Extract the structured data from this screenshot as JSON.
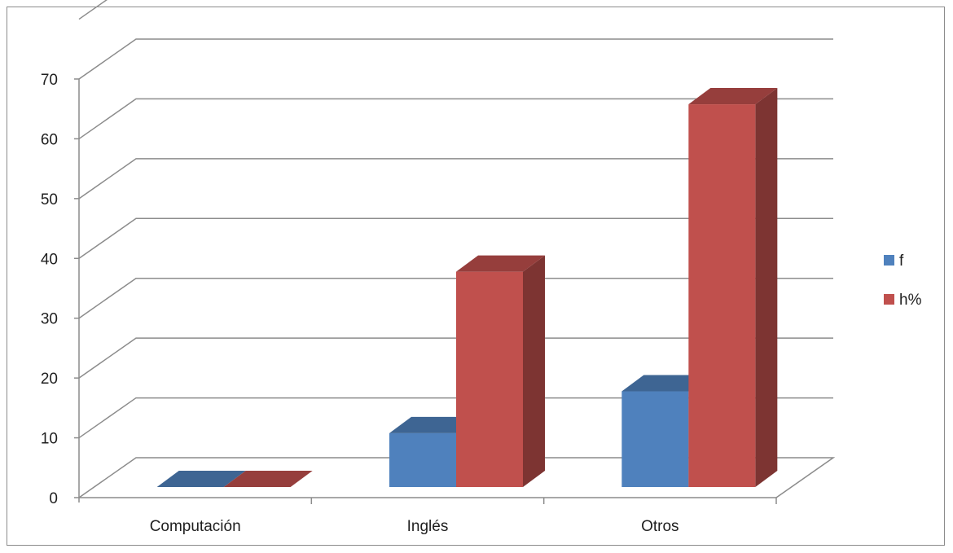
{
  "chart_data": {
    "type": "bar",
    "style": "3d-clustered-column",
    "categories": [
      "Computación",
      "Inglés",
      "Otros"
    ],
    "series": [
      {
        "name": "f",
        "values": [
          0,
          9,
          16
        ],
        "color": "#4f81bd"
      },
      {
        "name": "h%",
        "values": [
          0,
          36,
          64
        ],
        "color": "#c0504d"
      }
    ],
    "yticks": [
      "0",
      "10",
      "20",
      "30",
      "40",
      "50",
      "60",
      "70"
    ],
    "ylim": [
      0,
      70
    ],
    "grid": true,
    "legend": "right",
    "title": "",
    "xlabel": "",
    "ylabel": ""
  }
}
